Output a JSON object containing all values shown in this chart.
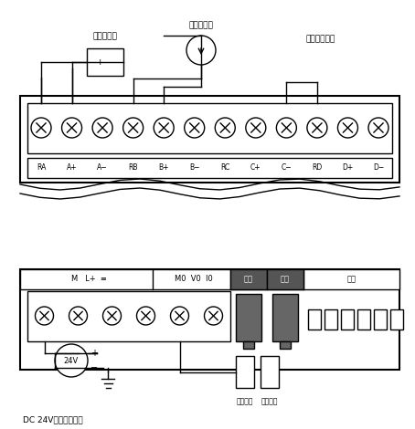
{
  "bg_color": "#ffffff",
  "line_color": "#000000",
  "dark_gray": "#808080",
  "light_gray": "#d0d0d0",
  "top_terminal_labels": [
    "RA",
    "A+",
    "A−",
    "RB",
    "B+",
    "B−",
    "RC",
    "C+",
    "C−",
    "RD",
    "D+",
    "D−"
  ],
  "bottom_header_labels": [
    "M",
    "L+",
    "≡",
    "M0",
    "V0",
    "I0"
  ],
  "section_labels": [
    "增益",
    "偏移",
    "配置"
  ],
  "label_voltage_sender": "电压发送器",
  "label_current_sender": "电流发送器",
  "label_unused_input": "未用的输入端",
  "label_dc24v": "DC 24V电源和公共端",
  "label_voltage_load": "电压负载",
  "label_current_load": "电流负载",
  "label_24v": "24V"
}
